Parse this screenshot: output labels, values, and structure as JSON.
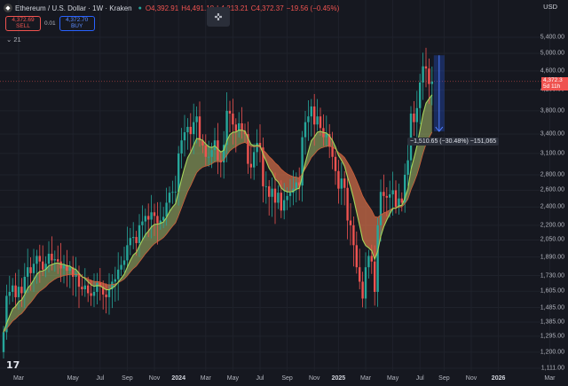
{
  "header": {
    "symbol": "Ethereum / U.S. Dollar · 1W · Kraken",
    "open": "O4,392.91",
    "high": "H4,491.18",
    "low": "L4,213.21",
    "close": "C4,372.37",
    "change": "−19.56 (−0.45%)"
  },
  "trade": {
    "sell_price": "4,372.69",
    "sell_label": "SELL",
    "spread": "0.01",
    "buy_price": "4,372.70",
    "buy_label": "BUY"
  },
  "indicator_count": "21",
  "currency": "USD",
  "current_price": {
    "price": "4,372.3",
    "countdown": "5d 11h"
  },
  "measure": "−1,510.65 (−30.48%) −151,065",
  "colors": {
    "up": "#26a69a",
    "down": "#ef5350",
    "accent": "#2962ff",
    "ema_fast": "#a5d65a",
    "cloud": "#e8835a"
  },
  "chart_data": {
    "type": "candlestick",
    "y_scale": "log",
    "price_ticks": [
      5400,
      5000,
      4600,
      4200,
      3800,
      3400,
      3100,
      2800,
      2600,
      2400,
      2200,
      2050,
      1890,
      1730,
      1605,
      1485,
      1385,
      1295,
      1200,
      1111
    ],
    "time_ticks": [
      "Mar",
      "May",
      "Jul",
      "Sep",
      "Nov",
      "2024",
      "Mar",
      "May",
      "Jul",
      "Sep",
      "Nov",
      "2025",
      "Mar",
      "May",
      "Jul",
      "Sep",
      "Nov",
      "2026",
      "Mar"
    ],
    "time_ticks_bold": [
      5,
      11,
      17
    ],
    "time_tick_weeks": [
      5,
      23,
      32,
      41,
      50,
      58,
      67,
      76,
      85,
      94,
      103,
      111,
      120,
      129,
      138,
      146,
      155,
      164,
      181
    ],
    "start_week_label": "Jan 2023",
    "closes": [
      1320,
      1570,
      1600,
      1650,
      1560,
      1640,
      1590,
      1720,
      1800,
      1750,
      1830,
      1900,
      1850,
      1780,
      1830,
      1920,
      1860,
      1870,
      1850,
      1790,
      1820,
      1770,
      1800,
      1720,
      1750,
      1640,
      1620,
      1650,
      1590,
      1570,
      1600,
      1670,
      1640,
      1580,
      1560,
      1620,
      1680,
      1700,
      1780,
      1820,
      1860,
      2000,
      2070,
      2080,
      2020,
      2200,
      2240,
      2300,
      2260,
      2340,
      2300,
      2220,
      2250,
      2290,
      2450,
      2570,
      2580,
      2580,
      3100,
      3300,
      3430,
      3520,
      3400,
      3600,
      3700,
      3300,
      3220,
      3050,
      3050,
      3150,
      3300,
      3000,
      2970,
      3230,
      3800,
      3750,
      3560,
      3450,
      3580,
      3450,
      3400,
      2950,
      2900,
      3120,
      3260,
      3190,
      2650,
      2650,
      2520,
      2620,
      2450,
      2570,
      2360,
      2480,
      2530,
      2570,
      2620,
      2700,
      2660,
      3350,
      3600,
      3700,
      3880,
      3560,
      3700,
      3500,
      3350,
      3400,
      3200,
      3050,
      2850,
      2620,
      2750,
      2630,
      2250,
      2200,
      2000,
      1800,
      1680,
      1550,
      1800,
      1900,
      1850,
      1600,
      2200,
      2580,
      2530,
      2510,
      2550,
      2600,
      2400,
      2500,
      2450,
      2800,
      3000,
      3750,
      3600,
      3850,
      4350,
      4700,
      4650,
      4320,
      4372
    ]
  }
}
